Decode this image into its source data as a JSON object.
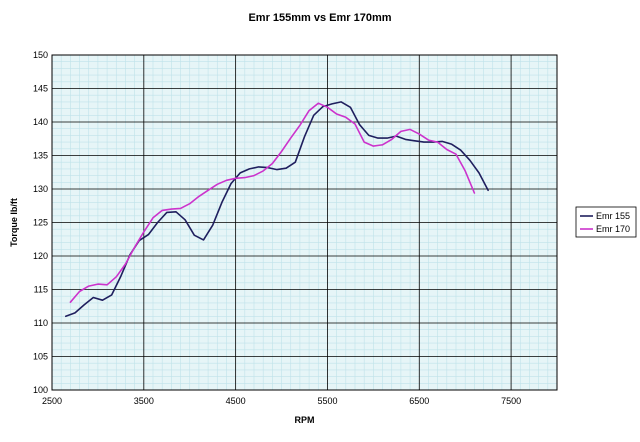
{
  "chart_data": {
    "type": "line",
    "title": "Emr 155mm vs Emr 170mm",
    "xlabel": "RPM",
    "ylabel": "Torque lb/ft",
    "xlim": [
      2500,
      8000
    ],
    "ylim": [
      100,
      150
    ],
    "x_ticks": [
      2500,
      3500,
      4500,
      5500,
      6500,
      7500
    ],
    "y_ticks": [
      100,
      105,
      110,
      115,
      120,
      125,
      130,
      135,
      140,
      145,
      150
    ],
    "grid": true,
    "legend_position": "right",
    "plot_background": "#e6f5f7",
    "grid_color": "#000000",
    "minor_grid_color": "#bfe2ea",
    "series": [
      {
        "name": "Emr 155",
        "color": "#1f1f5e",
        "x": [
          2650,
          2750,
          2850,
          2950,
          3050,
          3150,
          3250,
          3350,
          3450,
          3550,
          3650,
          3750,
          3850,
          3950,
          4050,
          4150,
          4250,
          4350,
          4450,
          4550,
          4650,
          4750,
          4850,
          4950,
          5050,
          5150,
          5250,
          5350,
          5450,
          5550,
          5650,
          5750,
          5850,
          5950,
          6050,
          6150,
          6250,
          6350,
          6450,
          6550,
          6650,
          6750,
          6850,
          6950,
          7050,
          7150,
          7250
        ],
        "y": [
          111.0,
          111.5,
          112.7,
          113.8,
          113.4,
          114.2,
          117.0,
          120.2,
          122.3,
          123.2,
          125.0,
          126.5,
          126.6,
          125.4,
          123.1,
          122.4,
          124.6,
          128.0,
          130.8,
          132.4,
          133.0,
          133.3,
          133.2,
          132.9,
          133.1,
          134.0,
          137.8,
          141.0,
          142.3,
          142.7,
          143.0,
          142.2,
          139.6,
          138.0,
          137.6,
          137.6,
          137.9,
          137.4,
          137.2,
          137.0,
          137.0,
          137.1,
          136.7,
          135.8,
          134.3,
          132.4,
          129.8
        ]
      },
      {
        "name": "Emr 170",
        "color": "#cc33cc",
        "x": [
          2700,
          2800,
          2900,
          3000,
          3100,
          3200,
          3300,
          3400,
          3500,
          3600,
          3700,
          3800,
          3900,
          4000,
          4100,
          4200,
          4300,
          4400,
          4500,
          4600,
          4700,
          4800,
          4900,
          5000,
          5100,
          5200,
          5300,
          5400,
          5500,
          5600,
          5700,
          5800,
          5900,
          6000,
          6100,
          6200,
          6300,
          6400,
          6500,
          6600,
          6700,
          6800,
          6900,
          7000,
          7100
        ],
        "y": [
          113.1,
          114.7,
          115.5,
          115.8,
          115.7,
          116.9,
          118.8,
          121.3,
          123.6,
          125.7,
          126.8,
          127.0,
          127.1,
          127.8,
          128.9,
          129.8,
          130.7,
          131.3,
          131.6,
          131.7,
          132.0,
          132.7,
          133.8,
          135.6,
          137.6,
          139.5,
          141.7,
          142.8,
          142.2,
          141.2,
          140.7,
          139.7,
          137.0,
          136.4,
          136.6,
          137.4,
          138.6,
          138.9,
          138.2,
          137.3,
          137.0,
          135.9,
          135.2,
          132.7,
          129.4
        ]
      }
    ]
  }
}
